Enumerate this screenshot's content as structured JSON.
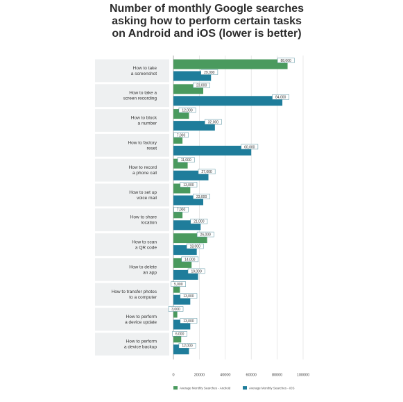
{
  "chart_data": {
    "type": "bar",
    "orientation": "horizontal",
    "title": "Number of monthly Google searches asking how to perform certain tasks on Android and iOS (lower is better)",
    "title_lines": [
      "Number of monthly Google searches",
      "asking how to perform certain tasks",
      "on Android and iOS (lower is better)"
    ],
    "categories": [
      [
        "How to take",
        "a screenshot"
      ],
      [
        "How to take a",
        "screen recording"
      ],
      [
        "How to block",
        "a number"
      ],
      [
        "How to factory",
        "reset"
      ],
      [
        "How to record",
        "a phone call"
      ],
      [
        "How to set up",
        "voice mail"
      ],
      [
        "How to share",
        "location"
      ],
      [
        "How to scan",
        "a QR code"
      ],
      [
        "How to delete",
        "an app"
      ],
      [
        "How to transfer photos",
        "to a computer"
      ],
      [
        "How to perform",
        "a device update"
      ],
      [
        "How to perform",
        "a device backup"
      ]
    ],
    "series": [
      {
        "name": "Average Monthly Searches - Android",
        "color": "#4a9a5e",
        "values": [
          88000,
          23000,
          12000,
          7000,
          11000,
          13000,
          7000,
          26000,
          14000,
          5000,
          3000,
          6000
        ],
        "value_labels": [
          "88,000",
          "23,000",
          "12,000",
          "7,000",
          "11,000",
          "13,000",
          "7,000",
          "26,000",
          "14,000",
          "5,000",
          "3,000",
          "6,000"
        ]
      },
      {
        "name": "Average Monthly Searches - iOS",
        "color": "#1f7d9b",
        "values": [
          29000,
          84000,
          32000,
          60000,
          27000,
          23000,
          21000,
          18000,
          19000,
          13000,
          13000,
          12000
        ],
        "value_labels": [
          "29,000",
          "84,000",
          "32,000",
          "60,000",
          "27,000",
          "23,000",
          "21,000",
          "18,000",
          "19,000",
          "13,000",
          "13,000",
          "12,000"
        ]
      }
    ],
    "xlim": [
      0,
      100000
    ],
    "x_ticks": [
      "0",
      "20000",
      "40000",
      "60000",
      "80000",
      "100000"
    ],
    "grid": true,
    "legend_position": "bottom"
  }
}
